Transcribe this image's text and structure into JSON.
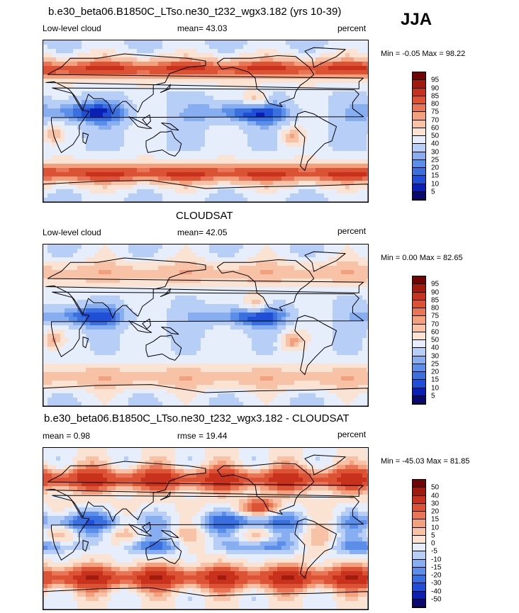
{
  "season": "JJA",
  "colors": {
    "seq": [
      "#0a0a6e",
      "#0b1fb5",
      "#1f4fd6",
      "#3a6fe0",
      "#5a8ee8",
      "#86aef0",
      "#b7cef6",
      "#e6eefb",
      "#fbe3d4",
      "#f7c2a6",
      "#f2a07e",
      "#e87555",
      "#dc5234",
      "#c8321d",
      "#a11a0e",
      "#6e0606"
    ],
    "div": [
      "#0a0a6e",
      "#0b1fb5",
      "#1f4fd6",
      "#3a6fe0",
      "#5a8ee8",
      "#86aef0",
      "#b7cef6",
      "#e6eefb",
      "#fbe3d4",
      "#f7c2a6",
      "#f2a07e",
      "#e87555",
      "#dc5234",
      "#c8321d",
      "#a11a0e",
      "#6e0606"
    ]
  },
  "panels": [
    {
      "title": "b.e30_beta06.B1850C_LTso.ne30_t232_wgx3.182 (yrs 10-39)",
      "left_label": "Low-level cloud",
      "center_label": "mean=  43.03",
      "right_label": "percent",
      "min_max": "Min =  -0.05 Max =  98.22",
      "colorbar_labels": [
        "95",
        "90",
        "85",
        "80",
        "75",
        "70",
        "60",
        "50",
        "40",
        "30",
        "25",
        "20",
        "15",
        "10",
        "5"
      ],
      "field": "model"
    },
    {
      "title": "CLOUDSAT",
      "left_label": "Low-level cloud",
      "center_label": "mean=  42.05",
      "right_label": "percent",
      "min_max": "Min =   0.00 Max =  82.65",
      "colorbar_labels": [
        "95",
        "90",
        "85",
        "80",
        "75",
        "70",
        "60",
        "50",
        "40",
        "30",
        "25",
        "20",
        "15",
        "10",
        "5"
      ],
      "field": "obs"
    },
    {
      "title": "b.e30_beta06.B1850C_LTso.ne30_t232_wgx3.182 - CLOUDSAT",
      "left_label": "mean =   0.98",
      "center_label": "rmse =  19.44",
      "right_label": "percent",
      "min_max": "Min = -45.03 Max =  81.85",
      "colorbar_labels": [
        "50",
        "40",
        "30",
        "20",
        "15",
        "10",
        "5",
        "0",
        "-5",
        "-10",
        "-15",
        "-20",
        "-30",
        "-40",
        "-50"
      ],
      "field": "diff"
    }
  ]
}
